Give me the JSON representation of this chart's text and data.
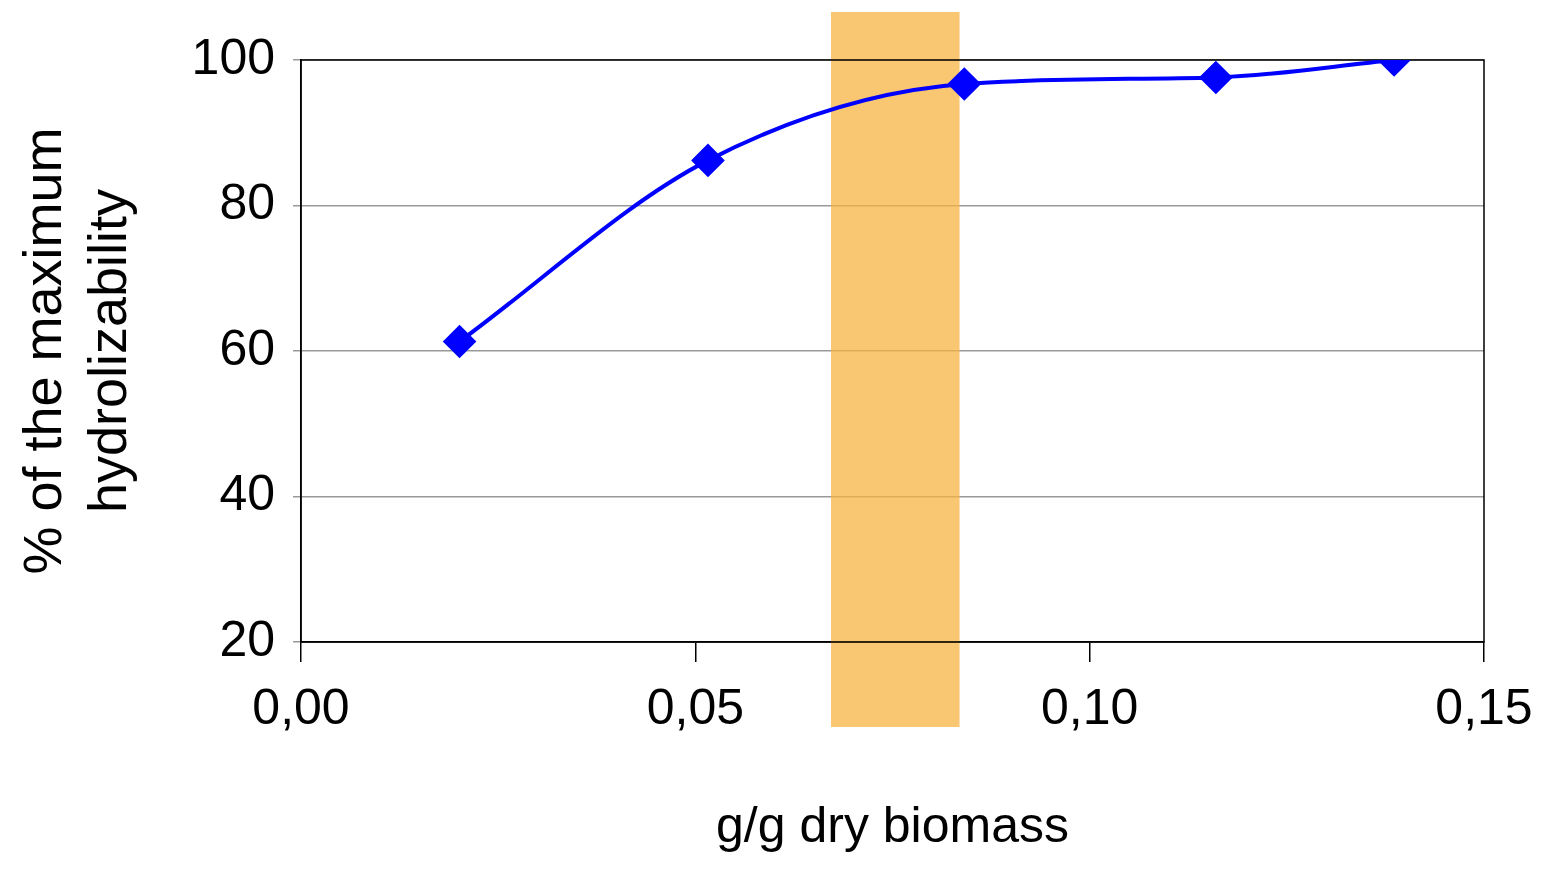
{
  "chart_data": {
    "type": "line",
    "xlabel": "g/g dry biomass",
    "ylabel": "% of the maximum\nhydrolizability",
    "x": [
      0.0201,
      0.0516,
      0.0841,
      0.116,
      0.1386
    ],
    "series": [
      {
        "color": "#0000ff",
        "values": [
          61.3,
          86.2,
          96.7,
          97.6,
          100
        ]
      }
    ],
    "xlim": [
      0,
      0.15
    ],
    "xticks": [
      {
        "value": 0,
        "label": "0,00"
      },
      {
        "value": 0.05,
        "label": "0,05"
      },
      {
        "value": 0.1,
        "label": "0,10"
      },
      {
        "value": 0.15,
        "label": "0,15"
      }
    ],
    "ylim": [
      20,
      100
    ],
    "yticks": [
      20,
      40,
      60,
      80,
      100
    ],
    "bands": [
      {
        "axis": "x",
        "from": 0.0672,
        "to": 0.0835,
        "color": "#f7b342"
      }
    ],
    "grid": "y",
    "legend": false,
    "marker": "diamond",
    "line_style": "solid"
  }
}
